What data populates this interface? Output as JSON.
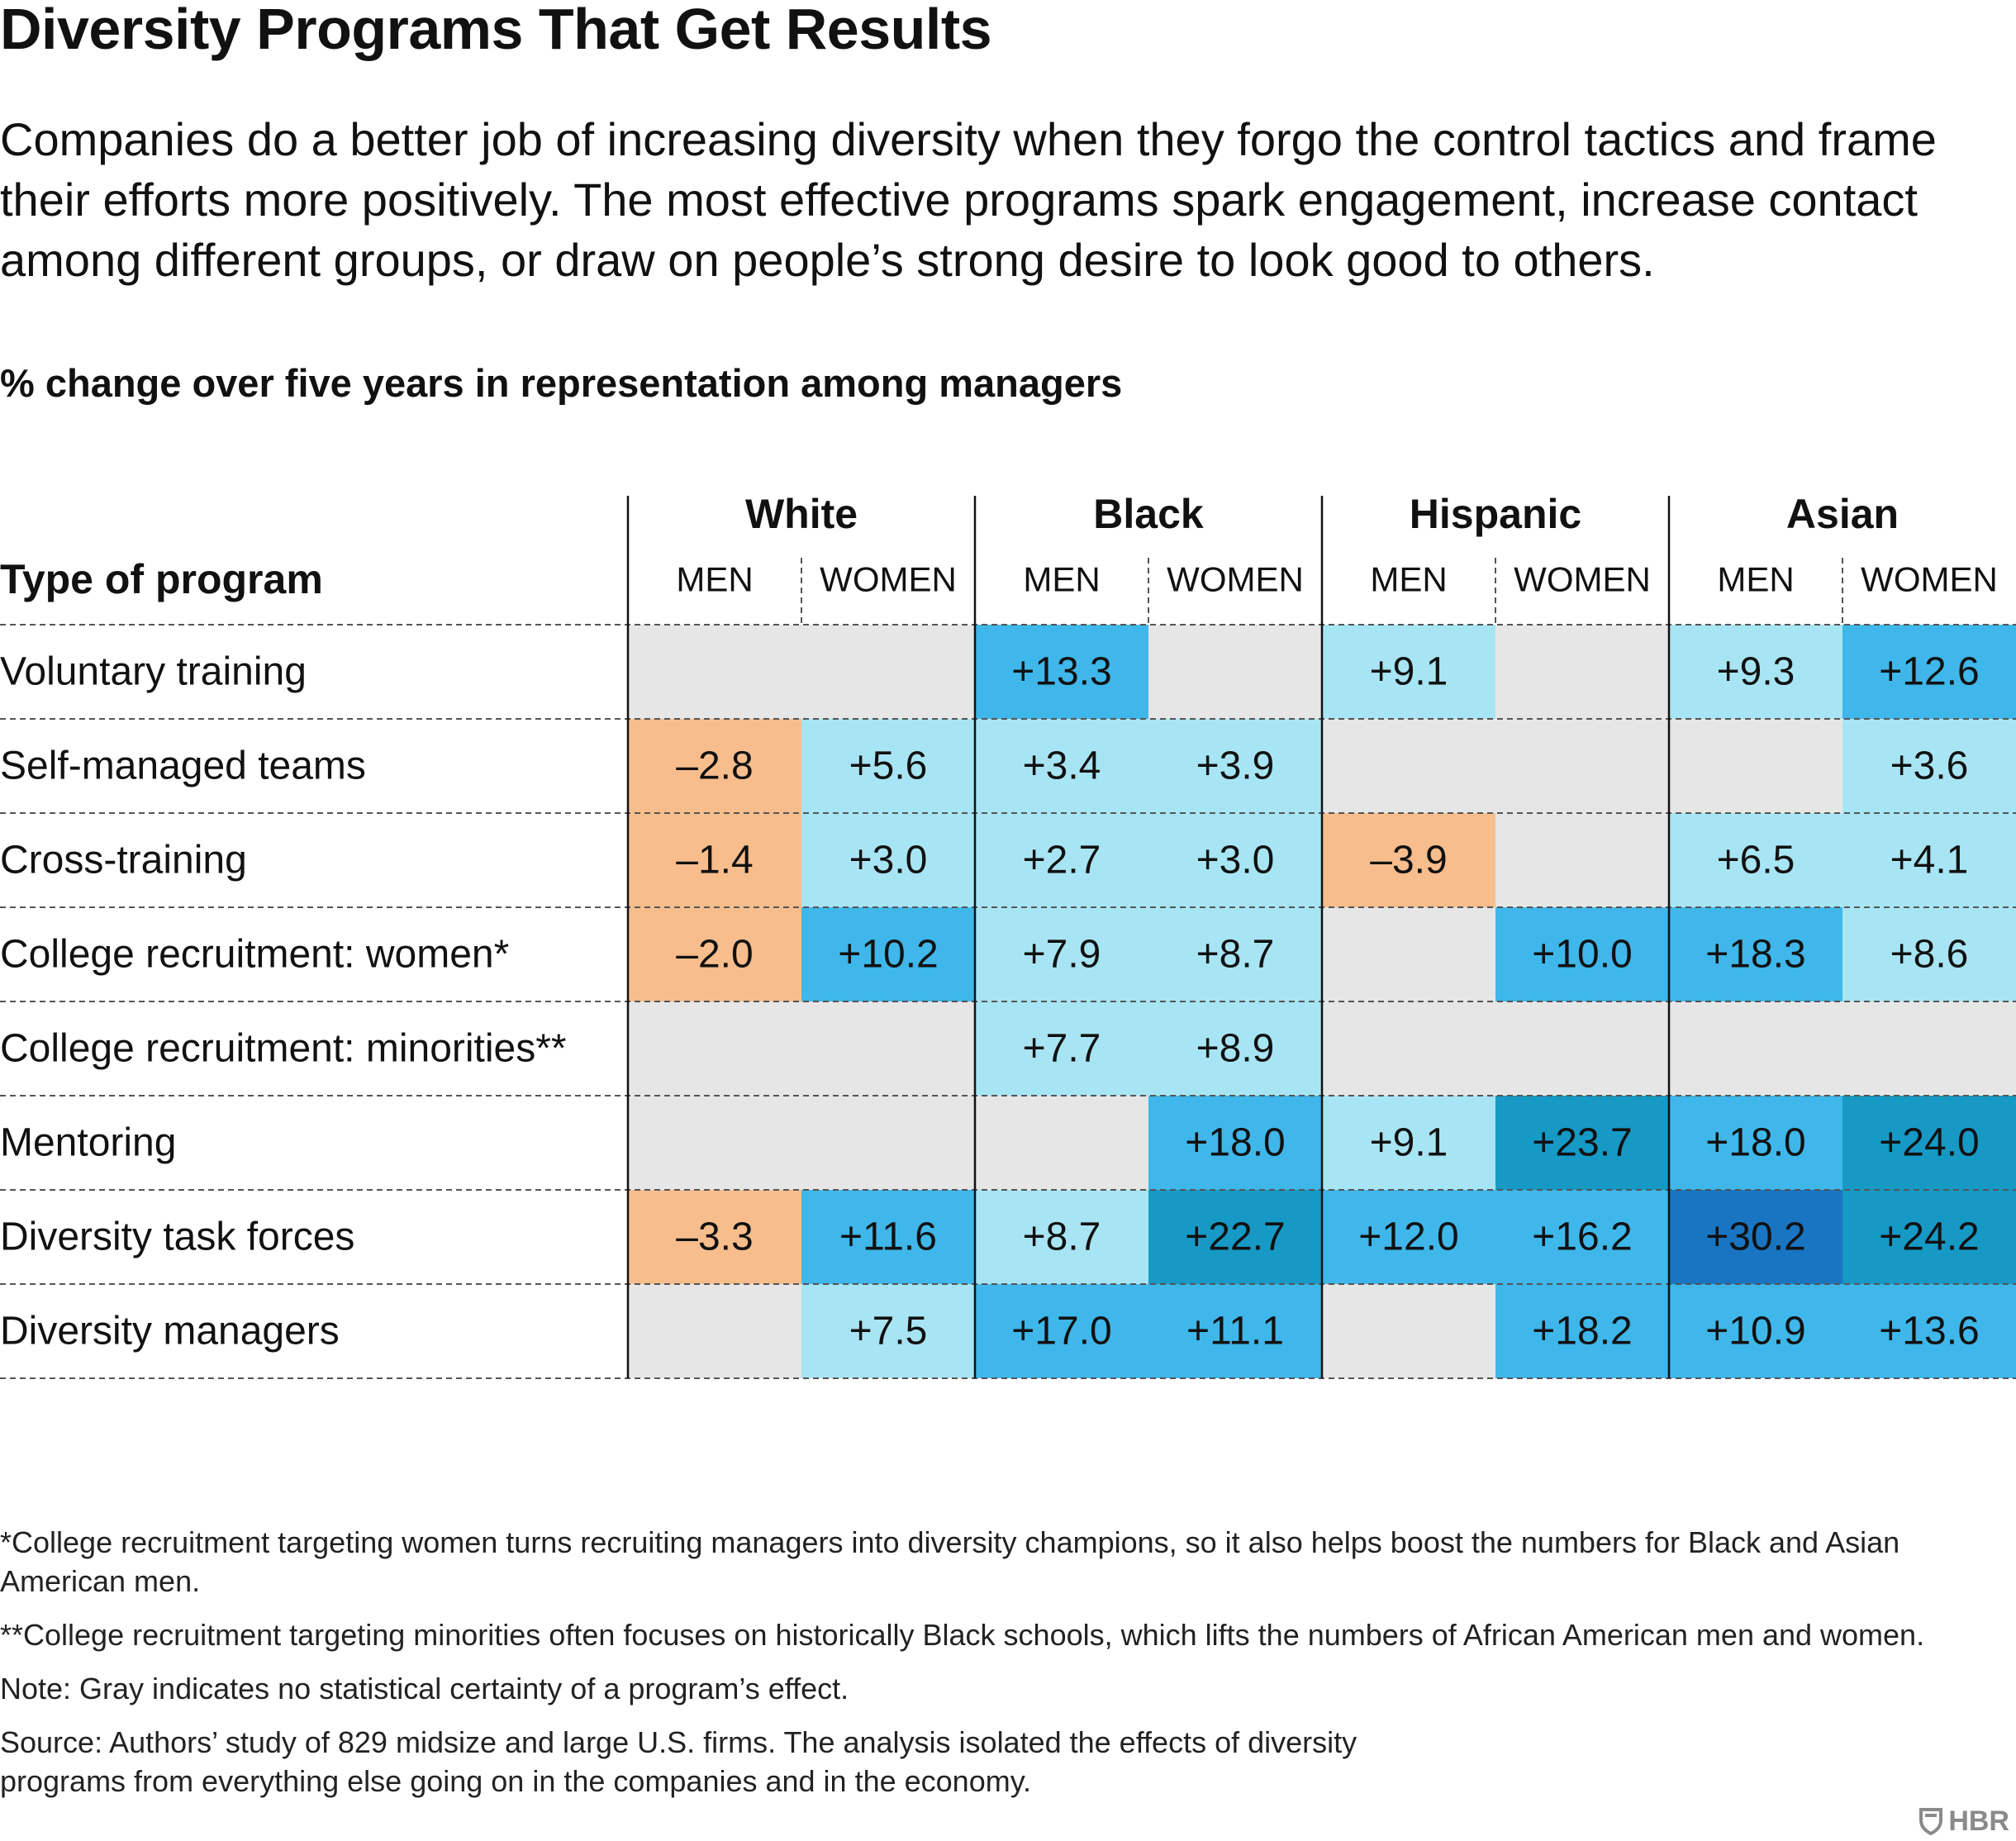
{
  "title": "Diversity Programs That Get Results",
  "subtitle": "Companies do a better job of increasing diversity when they forgo the control tactics and frame their efforts more positively. The most effective programs spark engagement, increase contact among different groups, or draw on people’s strong desire to look good to others.",
  "metric_label": "% change over five years in representation among managers",
  "notes": {
    "note1": "*College recruitment targeting women turns recruiting managers into diversity champions, so it also helps boost the numbers for Black and Asian American men.",
    "note2": "**College recruitment targeting minorities often focuses on historically Black schools, which lifts the numbers of African American men and women.",
    "note3": "Note: Gray indicates no statistical certainty of a program’s effect.",
    "source": "Source: Authors’ study of 829 midsize and large U.S. firms. The analysis isolated the effects of diversity programs from everything else going on in the companies and in the economy."
  },
  "logo": {
    "text": "HBR",
    "icon": "hbr-shield-icon"
  },
  "colors": {
    "gray": "#e6e6e6",
    "negative": "#f7bd8d",
    "light_blue": "#a8e5f4",
    "mid_blue": "#3fb7ea",
    "dark_teal": "#1699c5",
    "deep_blue": "#1975c2",
    "text": "#111111"
  },
  "chart_data": {
    "type": "heatmap",
    "row_header": "Type of program",
    "groups": [
      "White",
      "Black",
      "Hispanic",
      "Asian"
    ],
    "subgroups": [
      "MEN",
      "WOMEN"
    ],
    "columns": [
      "White MEN",
      "White WOMEN",
      "Black MEN",
      "Black WOMEN",
      "Hispanic MEN",
      "Hispanic WOMEN",
      "Asian MEN",
      "Asian WOMEN"
    ],
    "rows": [
      {
        "label": "Voluntary training",
        "values": [
          null,
          null,
          13.3,
          null,
          9.1,
          null,
          9.3,
          12.6
        ]
      },
      {
        "label": "Self-managed teams",
        "values": [
          -2.8,
          5.6,
          3.4,
          3.9,
          null,
          null,
          null,
          3.6
        ]
      },
      {
        "label": "Cross-training",
        "values": [
          -1.4,
          3.0,
          2.7,
          3.0,
          -3.9,
          null,
          6.5,
          4.1
        ]
      },
      {
        "label": "College recruitment: women*",
        "values": [
          -2.0,
          10.2,
          7.9,
          8.7,
          null,
          10.0,
          18.3,
          8.6
        ]
      },
      {
        "label": "College recruitment: minorities**",
        "values": [
          null,
          null,
          7.7,
          8.9,
          null,
          null,
          null,
          null
        ]
      },
      {
        "label": "Mentoring",
        "values": [
          null,
          null,
          null,
          18.0,
          9.1,
          23.7,
          18.0,
          24.0
        ]
      },
      {
        "label": "Diversity task forces",
        "values": [
          -3.3,
          11.6,
          8.7,
          22.7,
          12.0,
          16.2,
          30.2,
          24.2
        ]
      },
      {
        "label": "Diversity managers",
        "values": [
          null,
          7.5,
          17.0,
          11.1,
          null,
          18.2,
          10.9,
          13.6
        ]
      }
    ],
    "null_meaning": "gray cell"
  }
}
